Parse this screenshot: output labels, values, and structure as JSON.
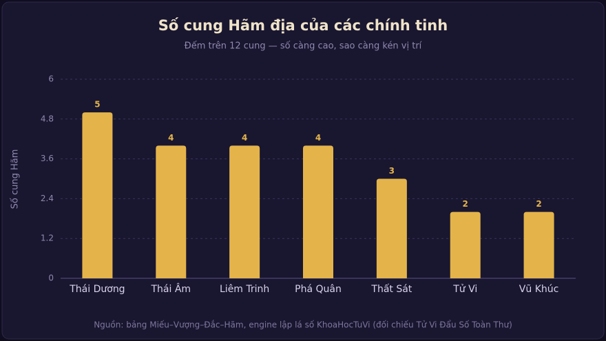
{
  "chart_data": {
    "type": "bar",
    "title": "Số cung Hãm địa của các chính tinh",
    "subtitle": "Đếm trên 12 cung — số càng cao, sao càng kén vị trí",
    "y_label": "Số cung Hãm",
    "categories": [
      "Thái Dương",
      "Thái Âm",
      "Liêm Trinh",
      "Phá Quân",
      "Thất Sát",
      "Tử Vi",
      "Vũ Khúc"
    ],
    "values": [
      5,
      4,
      4,
      4,
      3,
      2,
      2
    ],
    "color": "#e4b44a",
    "ylim": [
      0,
      6
    ],
    "yticks": [
      0,
      1.2,
      2.4,
      3.6,
      4.8,
      6
    ],
    "grid": true,
    "note": "Nguồn: bảng Miếu–Vượng–Đắc–Hãm, engine lập lá số KhoaHocTuVi (đối chiếu Tử Vi Đẩu Số Toàn Thư)"
  }
}
